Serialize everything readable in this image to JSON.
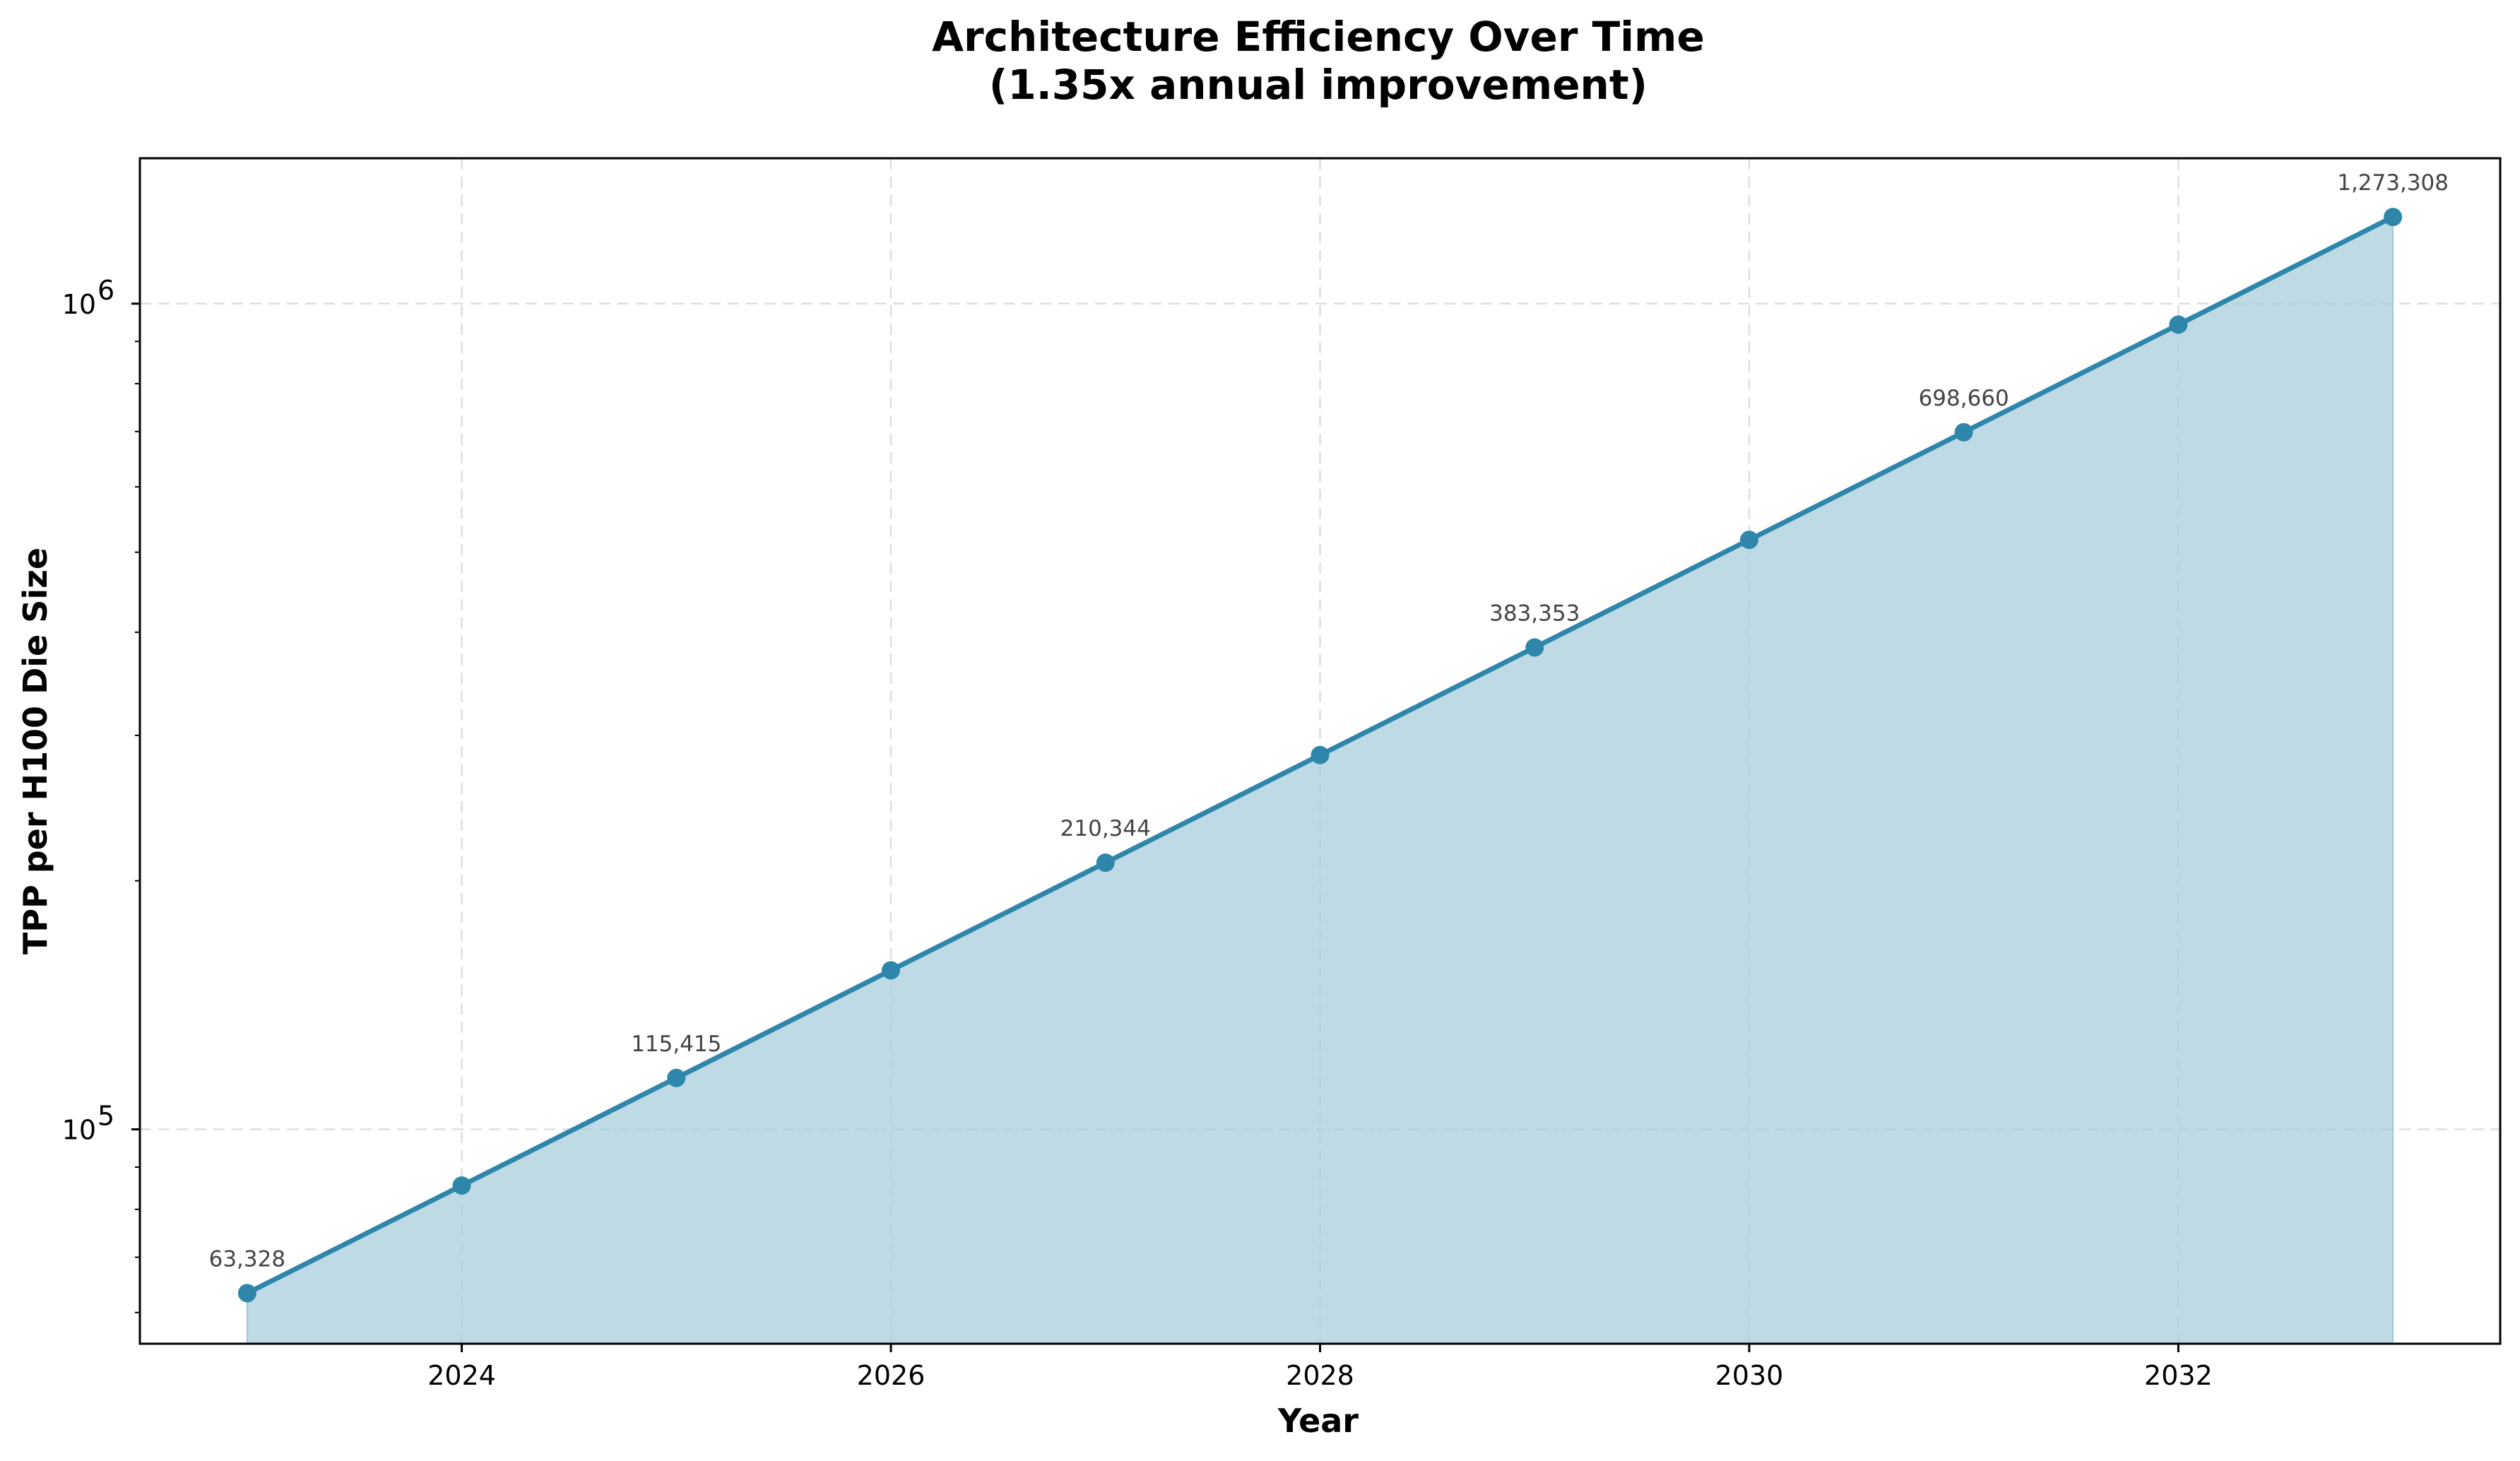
{
  "chart_data": {
    "type": "line",
    "title": "Architecture Efficiency Over Time",
    "subtitle": "(1.35x annual improvement)",
    "xlabel": "Year",
    "ylabel": "TPP per H100 Die Size",
    "yscale": "log",
    "xlim": [
      2022.5,
      2033.5
    ],
    "ylim": [
      55000,
      1500000
    ],
    "x_ticks": [
      2024,
      2026,
      2028,
      2030,
      2032
    ],
    "y_ticks": [
      {
        "value": 100000,
        "base": "10",
        "exp": "5"
      },
      {
        "value": 1000000,
        "base": "10",
        "exp": "6"
      }
    ],
    "grid": true,
    "fill_under": true,
    "colors": {
      "line": "#2e86ab",
      "fill": "#a8cfdc",
      "grid": "#d0d0d0"
    },
    "series": [
      {
        "x": [
          2023,
          2024,
          2025,
          2026,
          2027,
          2028,
          2029,
          2030,
          2031,
          2032,
          2033
        ],
        "values": [
          63328,
          85493,
          115415,
          155811,
          210344,
          283965,
          383353,
          517527,
          698660,
          943191,
          1273308
        ]
      }
    ],
    "annotations": [
      {
        "x": 2023,
        "y": 63328,
        "text": "63,328"
      },
      {
        "x": 2025,
        "y": 115415,
        "text": "115,415"
      },
      {
        "x": 2027,
        "y": 210344,
        "text": "210,344"
      },
      {
        "x": 2029,
        "y": 383353,
        "text": "383,353"
      },
      {
        "x": 2031,
        "y": 698660,
        "text": "698,660"
      },
      {
        "x": 2033,
        "y": 1273308,
        "text": "1,273,308"
      }
    ]
  }
}
